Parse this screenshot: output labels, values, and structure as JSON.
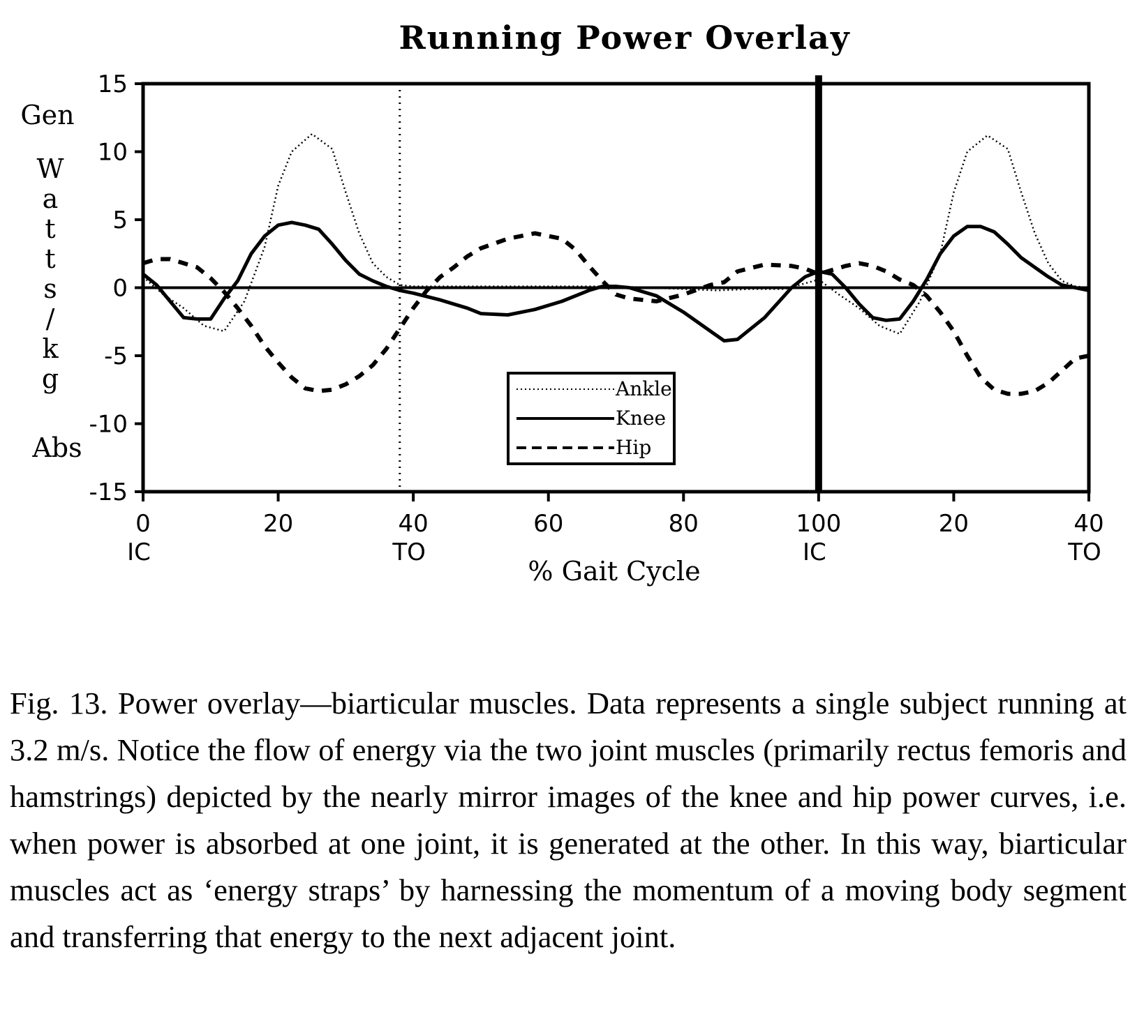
{
  "chart_data": {
    "type": "line",
    "title": "Running Power Overlay",
    "xlabel": "% Gait Cycle",
    "ylabel_letters": [
      "W",
      "a",
      "t",
      "t",
      "s",
      "/",
      "k",
      "g"
    ],
    "y_top_label": "Gen",
    "y_bottom_label": "Abs",
    "xlim": [
      0,
      140
    ],
    "ylim": [
      -15,
      15
    ],
    "x_ticks": [
      {
        "x": 0,
        "label": "0",
        "sub": "IC"
      },
      {
        "x": 20,
        "label": "20",
        "sub": ""
      },
      {
        "x": 40,
        "label": "40",
        "sub": "TO"
      },
      {
        "x": 60,
        "label": "60",
        "sub": ""
      },
      {
        "x": 80,
        "label": "80",
        "sub": ""
      },
      {
        "x": 100,
        "label": "100",
        "sub": "IC"
      },
      {
        "x": 120,
        "label": "20",
        "sub": ""
      },
      {
        "x": 140,
        "label": "40",
        "sub": "TO"
      }
    ],
    "y_ticks": [
      {
        "y": 15,
        "label": "15"
      },
      {
        "y": 10,
        "label": "10"
      },
      {
        "y": 5,
        "label": "5"
      },
      {
        "y": 0,
        "label": "0"
      },
      {
        "y": -5,
        "label": "-5"
      },
      {
        "y": -10,
        "label": "-10"
      },
      {
        "y": -15,
        "label": "-15"
      }
    ],
    "vlines": [
      {
        "x": 38,
        "style": "dotted"
      },
      {
        "x": 100,
        "style": "bold"
      }
    ],
    "series": [
      {
        "name": "Ankle",
        "style": "dotted",
        "x": [
          0,
          3,
          6,
          9,
          12,
          15,
          18,
          20,
          22,
          25,
          28,
          30,
          32,
          34,
          36,
          38,
          40,
          45,
          50,
          55,
          60,
          65,
          70,
          75,
          80,
          85,
          90,
          95,
          100,
          103,
          106,
          109,
          112,
          115,
          118,
          120,
          122,
          125,
          128,
          130,
          132,
          134,
          136,
          138,
          140
        ],
        "values": [
          0.8,
          -0.5,
          -1.5,
          -2.8,
          -3.2,
          -1.0,
          3.0,
          7.5,
          10.0,
          11.3,
          10.2,
          7.0,
          4.0,
          1.8,
          0.8,
          0.2,
          0.1,
          0.1,
          0.1,
          0.1,
          0.1,
          0.1,
          0.1,
          0.0,
          -0.1,
          -0.2,
          -0.1,
          -0.1,
          0.6,
          -0.5,
          -1.5,
          -2.8,
          -3.4,
          -1.0,
          2.5,
          7.0,
          10.0,
          11.2,
          10.2,
          7.0,
          4.0,
          1.8,
          0.5,
          0.1,
          0.0
        ]
      },
      {
        "name": "Knee",
        "style": "solid",
        "x": [
          0,
          2,
          4,
          6,
          8,
          10,
          12,
          14,
          16,
          18,
          20,
          22,
          24,
          26,
          28,
          30,
          32,
          34,
          36,
          38,
          40,
          44,
          48,
          50,
          54,
          58,
          62,
          66,
          68,
          70,
          72,
          76,
          80,
          84,
          86,
          88,
          92,
          96,
          98,
          100,
          102,
          104,
          106,
          108,
          110,
          112,
          114,
          116,
          118,
          120,
          122,
          124,
          126,
          128,
          130,
          132,
          134,
          136,
          138,
          140
        ],
        "values": [
          1.0,
          0.2,
          -1.0,
          -2.2,
          -2.3,
          -2.3,
          -0.8,
          0.5,
          2.5,
          3.8,
          4.6,
          4.8,
          4.6,
          4.3,
          3.2,
          2.0,
          1.0,
          0.5,
          0.1,
          -0.2,
          -0.4,
          -0.9,
          -1.5,
          -1.9,
          -2.0,
          -1.6,
          -1.0,
          -0.2,
          0.1,
          0.1,
          0.0,
          -0.6,
          -1.8,
          -3.2,
          -3.9,
          -3.8,
          -2.2,
          0.0,
          0.8,
          1.2,
          1.0,
          0.0,
          -1.2,
          -2.2,
          -2.4,
          -2.3,
          -1.0,
          0.6,
          2.5,
          3.8,
          4.5,
          4.5,
          4.1,
          3.2,
          2.2,
          1.5,
          0.8,
          0.2,
          0.0,
          -0.2
        ]
      },
      {
        "name": "Hip",
        "style": "dashed",
        "x": [
          0,
          2,
          4,
          6,
          8,
          10,
          12,
          14,
          16,
          18,
          20,
          22,
          24,
          26,
          28,
          30,
          32,
          34,
          36,
          38,
          40,
          42,
          44,
          46,
          48,
          50,
          54,
          58,
          62,
          64,
          66,
          68,
          70,
          72,
          76,
          80,
          84,
          86,
          88,
          92,
          96,
          98,
          100,
          102,
          104,
          106,
          108,
          110,
          112,
          114,
          116,
          118,
          120,
          122,
          124,
          126,
          128,
          130,
          132,
          134,
          136,
          138,
          140
        ],
        "values": [
          1.8,
          2.1,
          2.1,
          1.8,
          1.5,
          0.7,
          -0.3,
          -1.5,
          -2.8,
          -4.3,
          -5.5,
          -6.6,
          -7.4,
          -7.6,
          -7.5,
          -7.1,
          -6.5,
          -5.7,
          -4.5,
          -3.0,
          -1.5,
          -0.2,
          0.8,
          1.5,
          2.3,
          2.9,
          3.6,
          4.0,
          3.6,
          2.8,
          1.6,
          0.5,
          -0.5,
          -0.8,
          -1.0,
          -0.5,
          0.2,
          0.4,
          1.2,
          1.7,
          1.6,
          1.4,
          1.0,
          1.3,
          1.6,
          1.8,
          1.6,
          1.2,
          0.6,
          0.2,
          -0.6,
          -1.8,
          -3.2,
          -5.0,
          -6.6,
          -7.5,
          -7.8,
          -7.8,
          -7.6,
          -7.0,
          -6.1,
          -5.2,
          -5.0
        ]
      }
    ],
    "legend": [
      "Ankle",
      "Knee",
      "Hip"
    ],
    "legend_placement": "center-lower"
  },
  "caption": "Fig. 13. Power overlay—biarticular muscles. Data represents a single subject running at 3.2 m/s. Notice the flow of energy via the two joint muscles (primarily rectus femoris and hamstrings) depicted by the nearly mirror images of the knee and hip power curves, i.e. when power is absorbed at one joint, it is generated at the other. In this way, biarticular muscles act as ‘energy straps’ by harnessing the momentum of a moving body segment and transferring that energy to the next adjacent joint."
}
